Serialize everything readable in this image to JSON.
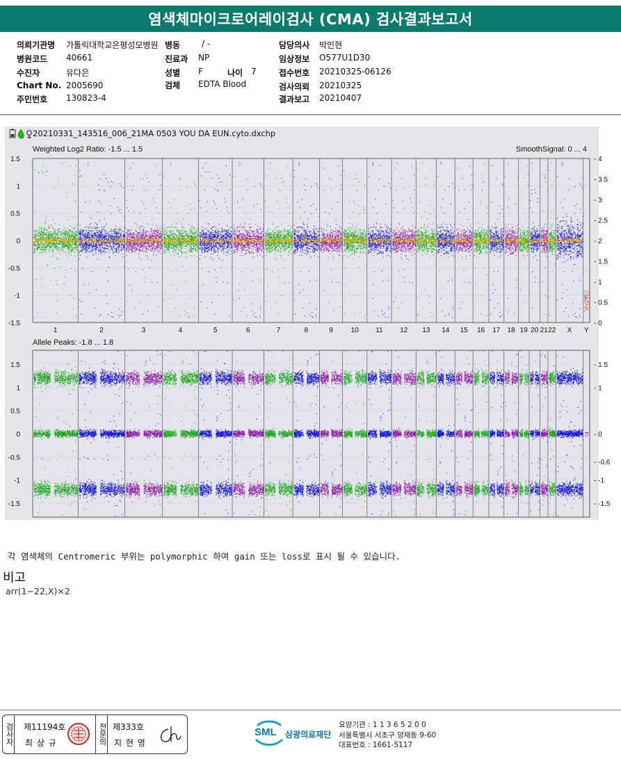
{
  "title": "염색체마이크로어레이검사 (CMA) 검사결과보고서",
  "info": {
    "col1": [
      {
        "label": "의뢰기관명",
        "value": "가톨릭대학교은평성모병원"
      },
      {
        "label": "병원코드",
        "value": "40661"
      },
      {
        "label": "수진자",
        "value": "유다은"
      },
      {
        "label": "Chart No.",
        "value": "2005690"
      },
      {
        "label": "주민번호",
        "value": "130823-4"
      }
    ],
    "col2": [
      {
        "label": "병동",
        "value": "/ -"
      },
      {
        "label": "진료과",
        "value": "NP"
      },
      {
        "label": "성별",
        "value": "F"
      },
      {
        "label": "검체",
        "value": "EDTA Blood"
      }
    ],
    "age": {
      "label": "나이",
      "value": "7"
    },
    "col3": [
      {
        "label": "담당의사",
        "value": "박민현"
      },
      {
        "label": "임상정보",
        "value": "O577U1D30"
      },
      {
        "label": "접수번호",
        "value": "20210325-06126"
      },
      {
        "label": "검사의뢰",
        "value": "20210325"
      },
      {
        "label": "결과보고",
        "value": "20210407"
      }
    ]
  },
  "plot": {
    "filename": "20210331_143516_006_21MA 0503 YOU DA EUN.cyto.dxchp",
    "icons": [
      "battery-icon",
      "green-drop-icon",
      "female-symbol-icon"
    ]
  },
  "chart_data": [
    {
      "type": "scatter",
      "title": "Weighted Log2 Ratio: -1.5 ... 1.5",
      "right_title": "SmoothSignal: 0 ... 4",
      "ylim": [
        -1.5,
        1.5
      ],
      "yticks": [
        "1.5",
        "1",
        "0.5",
        "0",
        "-0.5",
        "-1",
        "-1.5"
      ],
      "y2lim": [
        0,
        4
      ],
      "y2ticks": [
        "4",
        "3.5",
        "3",
        "2.5",
        "2",
        "1.5",
        "1",
        "0.5",
        "0"
      ],
      "categories": [
        "1",
        "2",
        "3",
        "4",
        "5",
        "6",
        "7",
        "8",
        "9",
        "10",
        "11",
        "12",
        "13",
        "14",
        "15",
        "16",
        "17",
        "18",
        "19",
        "20",
        "21",
        "22",
        "X",
        "Y"
      ],
      "series": [
        {
          "values": [
            0,
            0,
            0,
            0,
            0,
            0,
            0,
            0,
            0,
            0,
            0,
            0,
            0,
            0,
            0,
            0,
            0,
            0,
            0,
            0,
            0,
            0,
            0,
            0
          ]
        },
        {
          "values": [
            2,
            2,
            2,
            2,
            2,
            2,
            2,
            2,
            2,
            2,
            2,
            2,
            2,
            2,
            2,
            2,
            2,
            2,
            2,
            2,
            2,
            2,
            2,
            0
          ]
        }
      ]
    },
    {
      "type": "scatter",
      "title": "Allele Peaks: -1.8 ... 1.8",
      "ylim": [
        -1.8,
        1.8
      ],
      "yticks": [
        "1.5",
        "1",
        "0.5",
        "0",
        "-0.5",
        "-1",
        "-1.5"
      ],
      "y2ticks": [
        "1.5",
        "1",
        "0",
        "-0.6",
        "-1",
        "-1.5"
      ],
      "categories": [
        "1",
        "2",
        "3",
        "4",
        "5",
        "6",
        "7",
        "8",
        "9",
        "10",
        "11",
        "12",
        "13",
        "14",
        "15",
        "16",
        "17",
        "18",
        "19",
        "20",
        "21",
        "22",
        "X",
        "Y"
      ],
      "peak_levels": [
        1.2,
        0,
        -1.2
      ]
    }
  ],
  "chrom_colors": [
    "#1aa51a",
    "#1010e0",
    "#8a1aa8"
  ],
  "smooth_color": "#f5b000",
  "note": "각 염색체의 Centromeric 부위는 polymorphic 하여 gain 또는 loss로 표시 될 수 있습니다.",
  "remarks": {
    "title": "비고",
    "text": "arr(1−22,X)×2"
  },
  "footer": {
    "examiner_label": "검사자",
    "examiner_no": "제11194호",
    "examiner_name": "최 상 규",
    "specialist_label": "전문의",
    "specialist_no": "제333호",
    "specialist_name": "지 현 영",
    "org_name": "삼광의료재단",
    "logo_text": "SML",
    "inst_code": "요양기관 : 1 1 3 6 5 2 0 0",
    "address": "서울특별시 서초구 양재동 9-60",
    "phone": "대표번호 : 1661-5117"
  }
}
